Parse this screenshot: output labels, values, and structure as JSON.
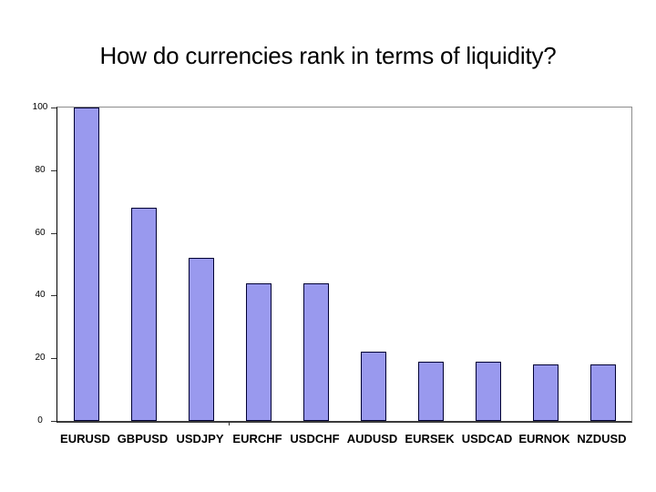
{
  "slide": {
    "title": "How do currencies rank in terms of liquidity?"
  },
  "chart_data": {
    "type": "bar",
    "title": "How do currencies rank in terms of liquidity?",
    "categories": [
      "EURUSD",
      "GBPUSD",
      "USDJPY",
      "EURCHF",
      "USDCHF",
      "AUDUSD",
      "EURSEK",
      "USDCAD",
      "EURNOK",
      "NZDUSD"
    ],
    "values": [
      100,
      68,
      52,
      44,
      44,
      22,
      19,
      19,
      18,
      18
    ],
    "xlabel": "",
    "ylabel": "",
    "ylim": [
      0,
      100
    ],
    "yticks": [
      0,
      20,
      40,
      60,
      80,
      100
    ],
    "grid": "single horizontal gridline at y=100 only",
    "legend": "none",
    "layout": {
      "bar_fill": "#9999ee",
      "bar_border": "#000033",
      "axis_color": "#333333",
      "gridline_color": "#8c8c8c",
      "background": "#ffffff",
      "x_axis_tick_boundaries": [
        3
      ]
    }
  }
}
